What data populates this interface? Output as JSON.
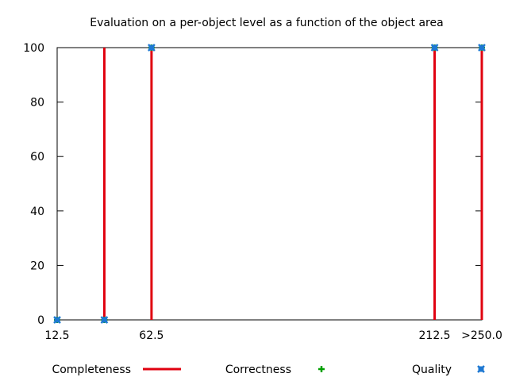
{
  "chart_data": {
    "type": "line",
    "title": "Evaluation on a per-object level as a function of the object area",
    "xlabel": "",
    "ylabel": "",
    "x_tick_labels": [
      {
        "value": 12.5,
        "label": "12.5"
      },
      {
        "value": 62.5,
        "label": "62.5"
      },
      {
        "value": 212.5,
        "label": "212.5"
      },
      {
        "value": 237.5,
        "label": ">250.0"
      }
    ],
    "xlim": [
      12.5,
      237.5
    ],
    "ylim": [
      0,
      100
    ],
    "y_ticks": [
      0,
      20,
      40,
      60,
      80,
      100
    ],
    "grid": false,
    "legend_position": "bottom",
    "series": [
      {
        "name": "Completeness",
        "style": "impulses",
        "color": "#e0000f",
        "x": [
          37.5,
          62.5,
          212.5,
          237.5
        ],
        "values": [
          100,
          100,
          100,
          100
        ]
      },
      {
        "name": "Correctness",
        "style": "points",
        "marker": "plus",
        "color": "#00a000",
        "x": [
          12.5,
          37.5,
          62.5,
          212.5,
          237.5
        ],
        "values": [
          0,
          0,
          100,
          100,
          100
        ]
      },
      {
        "name": "Quality",
        "style": "points",
        "marker": "x",
        "color": "#1e78d2",
        "x": [
          12.5,
          37.5,
          62.5,
          212.5,
          237.5
        ],
        "values": [
          0,
          0,
          100,
          100,
          100
        ]
      }
    ]
  }
}
